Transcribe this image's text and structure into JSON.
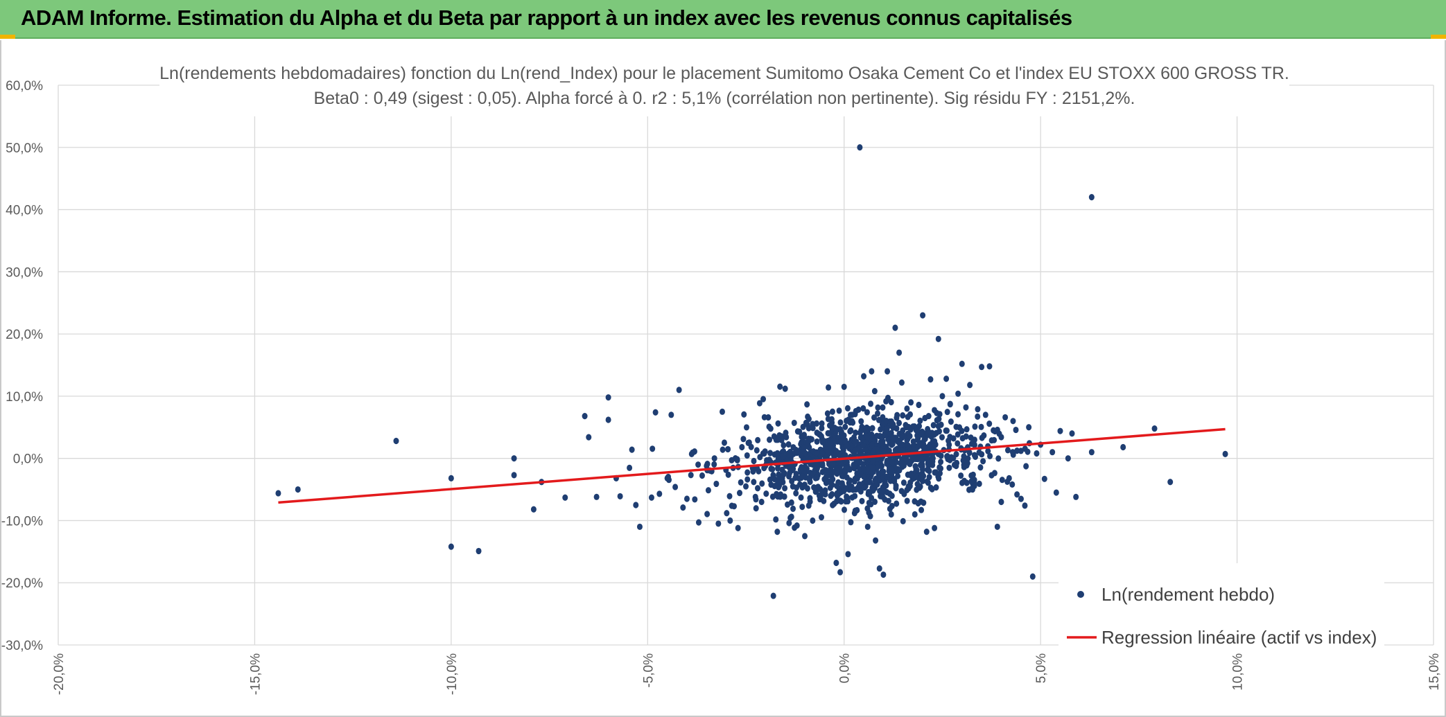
{
  "header": {
    "title": "ADAM Informe. Estimation du Alpha et du Beta par rapport à un index avec les revenus connus capitalisés"
  },
  "colors": {
    "header_bg": "#7dc87b",
    "points": "#1f3e72",
    "regression": "#e31a1c",
    "grid": "#d9d9d9",
    "axis_text": "#595959"
  },
  "chart_data": {
    "type": "scatter",
    "title": "Ln(rendements hebdomadaires) fonction du Ln(rend_Index) pour le placement Sumitomo Osaka Cement Co  et l'index EU STOXX 600 GROSS TR.",
    "subtitle": "Beta0 : 0,49 (sigest : 0,05). Alpha forcé à 0. r2 : 5,1% (corrélation non pertinente). Sig résidu FY : 2151,2%.",
    "xlabel": "",
    "ylabel": "",
    "xlim": [
      -0.2,
      0.15
    ],
    "ylim": [
      -0.3,
      0.6
    ],
    "x_ticks": [
      -0.2,
      -0.15,
      -0.1,
      -0.05,
      0.0,
      0.05,
      0.1,
      0.15
    ],
    "x_tick_labels": [
      "-20,0%",
      "-15,0%",
      "-10,0%",
      "-5,0%",
      "0,0%",
      "5,0%",
      "10,0%",
      "15,0%"
    ],
    "y_ticks": [
      0.6,
      0.5,
      0.4,
      0.3,
      0.2,
      0.1,
      0.0,
      -0.1,
      -0.2,
      -0.3
    ],
    "y_tick_labels": [
      "60,0%",
      "50,0%",
      "40,0%",
      "30,0%",
      "20,0%",
      "10,0%",
      "0,0%",
      "-10,0%",
      "-20,0%",
      "-30,0%"
    ],
    "grid": true,
    "legend_position": "bottom-right",
    "series": [
      {
        "name": "Ln(rendement hebdo)",
        "kind": "points",
        "cluster": {
          "count": 1150,
          "center_x": 0.004,
          "center_y": 0.0,
          "std_x": 0.016,
          "std_y": 0.036,
          "seed": 42
        },
        "outliers": [
          [
            -0.144,
            -0.056
          ],
          [
            -0.139,
            -0.05
          ],
          [
            -0.114,
            0.028
          ],
          [
            -0.1,
            -0.032
          ],
          [
            -0.1,
            -0.142
          ],
          [
            -0.093,
            -0.149
          ],
          [
            -0.084,
            0.0
          ],
          [
            -0.084,
            -0.027
          ],
          [
            -0.079,
            -0.082
          ],
          [
            -0.077,
            -0.038
          ],
          [
            -0.071,
            -0.063
          ],
          [
            -0.066,
            0.068
          ],
          [
            -0.065,
            0.034
          ],
          [
            -0.063,
            -0.062
          ],
          [
            -0.06,
            0.098
          ],
          [
            -0.06,
            0.062
          ],
          [
            -0.058,
            -0.032
          ],
          [
            -0.057,
            -0.061
          ],
          [
            -0.054,
            0.014
          ],
          [
            -0.053,
            -0.075
          ],
          [
            -0.052,
            -0.11
          ],
          [
            -0.049,
            -0.063
          ],
          [
            -0.048,
            0.074
          ],
          [
            -0.047,
            -0.057
          ],
          [
            -0.045,
            -0.032
          ],
          [
            -0.044,
            0.07
          ],
          [
            -0.042,
            0.11
          ],
          [
            -0.041,
            -0.079
          ],
          [
            -0.04,
            -0.065
          ],
          [
            -0.038,
            -0.066
          ],
          [
            -0.037,
            -0.103
          ],
          [
            -0.035,
            -0.012
          ],
          [
            -0.033,
            0.0
          ],
          [
            -0.032,
            -0.105
          ],
          [
            -0.031,
            0.075
          ],
          [
            -0.029,
            -0.1
          ],
          [
            -0.028,
            -0.077
          ],
          [
            -0.027,
            -0.112
          ],
          [
            -0.026,
            0.018
          ],
          [
            -0.025,
            -0.045
          ],
          [
            -0.023,
            -0.038
          ],
          [
            -0.022,
            -0.048
          ],
          [
            -0.021,
            -0.07
          ],
          [
            -0.019,
            0.03
          ],
          [
            -0.018,
            -0.221
          ],
          [
            -0.017,
            -0.118
          ],
          [
            -0.015,
            0.112
          ],
          [
            -0.014,
            -0.104
          ],
          [
            -0.013,
            -0.081
          ],
          [
            -0.012,
            -0.108
          ],
          [
            -0.01,
            -0.125
          ],
          [
            -0.009,
            -0.076
          ],
          [
            -0.007,
            0.056
          ],
          [
            -0.006,
            -0.062
          ],
          [
            -0.004,
            0.114
          ],
          [
            -0.002,
            -0.168
          ],
          [
            -0.001,
            -0.183
          ],
          [
            0.0,
            0.115
          ],
          [
            0.001,
            -0.154
          ],
          [
            0.002,
            0.07
          ],
          [
            0.004,
            0.5
          ],
          [
            0.005,
            0.132
          ],
          [
            0.006,
            -0.11
          ],
          [
            0.007,
            0.14
          ],
          [
            0.008,
            -0.132
          ],
          [
            0.009,
            -0.177
          ],
          [
            0.01,
            -0.187
          ],
          [
            0.011,
            0.14
          ],
          [
            0.012,
            -0.09
          ],
          [
            0.013,
            0.21
          ],
          [
            0.014,
            0.17
          ],
          [
            0.015,
            -0.101
          ],
          [
            0.016,
            0.08
          ],
          [
            0.017,
            0.09
          ],
          [
            0.018,
            -0.09
          ],
          [
            0.019,
            0.086
          ],
          [
            0.02,
            0.23
          ],
          [
            0.021,
            -0.118
          ],
          [
            0.022,
            0.127
          ],
          [
            0.023,
            -0.112
          ],
          [
            0.024,
            0.192
          ],
          [
            0.025,
            0.1
          ],
          [
            0.026,
            0.128
          ],
          [
            0.027,
            0.087
          ],
          [
            0.029,
            0.104
          ],
          [
            0.03,
            0.152
          ],
          [
            0.031,
            0.082
          ],
          [
            0.032,
            0.118
          ],
          [
            0.034,
            0.079
          ],
          [
            0.035,
            0.147
          ],
          [
            0.036,
            0.07
          ],
          [
            0.037,
            0.148
          ],
          [
            0.038,
            0.045
          ],
          [
            0.039,
            -0.11
          ],
          [
            0.04,
            -0.07
          ],
          [
            0.041,
            0.066
          ],
          [
            0.042,
            -0.032
          ],
          [
            0.043,
            0.06
          ],
          [
            0.044,
            -0.058
          ],
          [
            0.045,
            0.012
          ],
          [
            0.046,
            -0.076
          ],
          [
            0.047,
            0.05
          ],
          [
            0.048,
            -0.19
          ],
          [
            0.049,
            0.008
          ],
          [
            0.05,
            0.022
          ],
          [
            0.051,
            -0.033
          ],
          [
            0.053,
            0.01
          ],
          [
            0.054,
            -0.055
          ],
          [
            0.055,
            0.044
          ],
          [
            0.057,
            0.0
          ],
          [
            0.058,
            0.04
          ],
          [
            0.059,
            -0.062
          ],
          [
            0.063,
            0.01
          ],
          [
            0.063,
            0.42
          ],
          [
            0.071,
            0.018
          ],
          [
            0.079,
            0.048
          ],
          [
            0.083,
            -0.038
          ],
          [
            0.097,
            0.007
          ]
        ]
      },
      {
        "name": "Regression linéaire (actif vs index)",
        "kind": "line",
        "x": [
          -0.144,
          0.097
        ],
        "y": [
          -0.071,
          0.047
        ]
      }
    ]
  }
}
